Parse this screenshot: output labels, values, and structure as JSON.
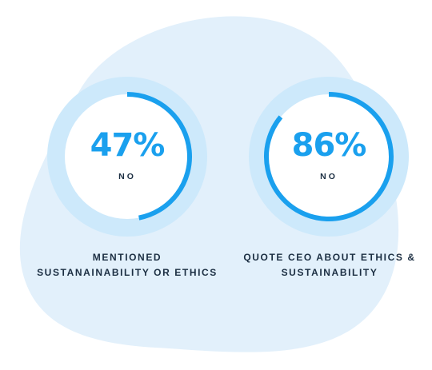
{
  "colors": {
    "accent": "#1aa0ee",
    "ring_light": "#cde9fb",
    "inner_fill": "#ffffff",
    "blob": "#e2f0fb",
    "text_dark": "#1b2e42"
  },
  "chart_data": [
    {
      "type": "pie",
      "value": 47,
      "value_label": "47%",
      "sublabel": "NO",
      "caption_lines": [
        "MENTIONED",
        "SUSTANAINABILITY OR ETHICS"
      ]
    },
    {
      "type": "pie",
      "value": 86,
      "value_label": "86%",
      "sublabel": "NO",
      "caption_lines": [
        "QUOTE CEO ABOUT ETHICS &",
        "SUSTAINABILITY"
      ]
    }
  ]
}
